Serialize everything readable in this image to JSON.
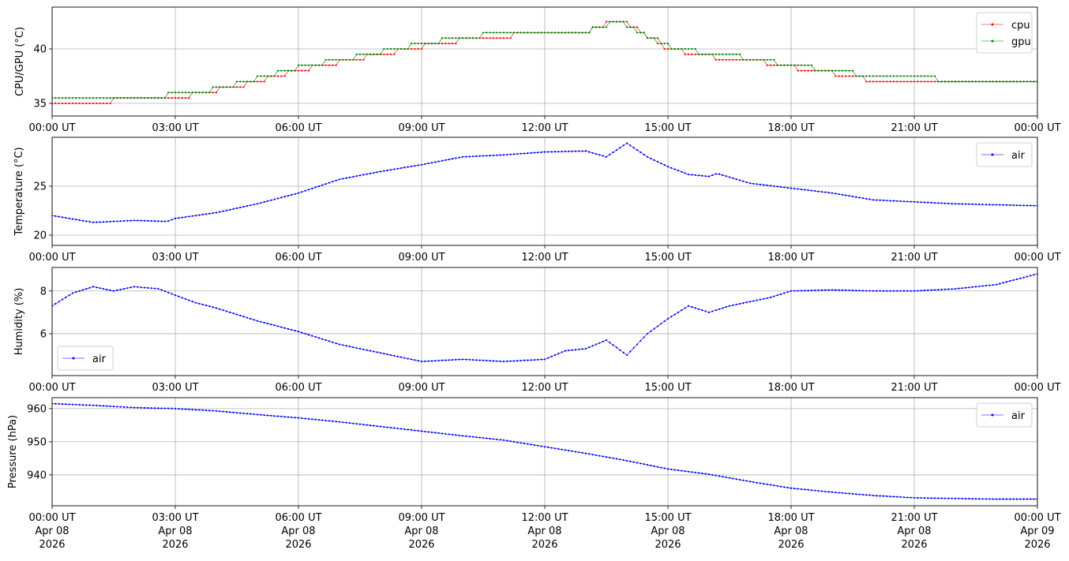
{
  "chart_data": [
    {
      "type": "line",
      "ylabel": "CPU/GPU (°C)",
      "ylim": [
        33.84,
        43.84
      ],
      "yticks": [
        35,
        40
      ],
      "legend": "top-right",
      "grid": true,
      "series": [
        {
          "name": "cpu",
          "color": "#ff0000",
          "quantize": 0.5,
          "x": [
            0,
            1,
            2,
            3,
            4,
            5,
            6,
            7,
            8,
            9,
            10,
            11,
            12,
            13,
            13.8,
            14.2,
            15,
            16,
            17,
            18,
            19,
            20,
            21,
            22,
            23,
            24
          ],
          "y": [
            35.2,
            35.2,
            35.3,
            35.5,
            36.2,
            37.0,
            38.0,
            38.8,
            39.5,
            40.2,
            40.8,
            41.2,
            41.4,
            41.5,
            42.8,
            42.0,
            40.0,
            39.3,
            39.0,
            38.3,
            37.8,
            37.1,
            37.0,
            36.8,
            36.8,
            36.8
          ]
        },
        {
          "name": "gpu",
          "color": "#008000",
          "quantize": 0.5,
          "x": [
            0,
            1,
            2,
            3,
            4,
            5,
            6,
            7,
            8,
            9,
            10,
            11,
            12,
            13,
            13.8,
            14.2,
            15,
            16,
            17,
            18,
            19,
            20,
            21,
            22,
            23,
            24
          ],
          "y": [
            35.5,
            35.5,
            35.5,
            35.8,
            36.3,
            37.3,
            38.3,
            39.0,
            39.7,
            40.5,
            41.0,
            41.5,
            41.6,
            41.6,
            42.5,
            41.8,
            40.3,
            39.5,
            39.2,
            38.5,
            38.0,
            37.5,
            37.3,
            37.2,
            37.2,
            37.2
          ]
        }
      ]
    },
    {
      "type": "line",
      "ylabel": "Temperature (°C)",
      "ylim": [
        18.95,
        30.0
      ],
      "yticks": [
        20,
        25
      ],
      "legend": "top-right",
      "grid": true,
      "series": [
        {
          "name": "air",
          "color": "#0000ff",
          "x": [
            0,
            1,
            2,
            2.8,
            3,
            4,
            5,
            6,
            7,
            8,
            9,
            10,
            11,
            12,
            13,
            13.5,
            14,
            14.5,
            15,
            15.5,
            16,
            16.2,
            17,
            18,
            19,
            20,
            21,
            22,
            23,
            24
          ],
          "y": [
            22.0,
            21.3,
            21.5,
            21.4,
            21.7,
            22.3,
            23.2,
            24.3,
            25.7,
            26.5,
            27.2,
            28.0,
            28.2,
            28.5,
            28.6,
            28.0,
            29.4,
            28.0,
            27.0,
            26.2,
            26.0,
            26.3,
            25.3,
            24.8,
            24.3,
            23.6,
            23.4,
            23.2,
            23.1,
            23.0
          ]
        }
      ]
    },
    {
      "type": "line",
      "ylabel": "Humidity (%)",
      "ylim": [
        4.04,
        9.1
      ],
      "yticks": [
        6,
        8
      ],
      "legend": "bottom-left",
      "grid": true,
      "series": [
        {
          "name": "air",
          "color": "#0000ff",
          "x": [
            0,
            0.5,
            1,
            1.5,
            2,
            2.6,
            3,
            3.5,
            4,
            5,
            6,
            7,
            8,
            8.5,
            9,
            10,
            11,
            12,
            12.5,
            13,
            13.5,
            14,
            14.5,
            15,
            15.5,
            16,
            16.5,
            17,
            17.5,
            18,
            19,
            20,
            21,
            22,
            23,
            24
          ],
          "y": [
            7.3,
            7.9,
            8.2,
            8.0,
            8.2,
            8.1,
            7.8,
            7.45,
            7.2,
            6.6,
            6.1,
            5.5,
            5.1,
            4.9,
            4.7,
            4.8,
            4.7,
            4.8,
            5.2,
            5.3,
            5.7,
            5.0,
            6.0,
            6.7,
            7.3,
            7.0,
            7.3,
            7.5,
            7.7,
            8.0,
            8.05,
            8.0,
            8.0,
            8.1,
            8.3,
            8.8
          ]
        }
      ]
    },
    {
      "type": "line",
      "ylabel": "Pressure (hPa)",
      "ylim": [
        930.7,
        963.3
      ],
      "yticks": [
        940,
        950,
        960
      ],
      "legend": "top-right",
      "grid": true,
      "series": [
        {
          "name": "air",
          "color": "#0000ff",
          "x": [
            0,
            1,
            2,
            3,
            4,
            5,
            6,
            7,
            8,
            9,
            10,
            11,
            12,
            13,
            14,
            15,
            16,
            17,
            18,
            19,
            20,
            21,
            22,
            23,
            24
          ],
          "y": [
            961.5,
            961.0,
            960.3,
            960.0,
            959.3,
            958.2,
            957.2,
            956.0,
            954.6,
            953.2,
            951.8,
            950.5,
            948.5,
            946.5,
            944.3,
            941.8,
            940.2,
            938.0,
            936.0,
            934.8,
            933.8,
            933.1,
            932.9,
            932.7,
            932.7
          ]
        }
      ]
    }
  ],
  "xaxis": {
    "xlim_hours": [
      0,
      24
    ],
    "tick_times": [
      "00:00 UT",
      "03:00 UT",
      "06:00 UT",
      "09:00 UT",
      "12:00 UT",
      "15:00 UT",
      "18:00 UT",
      "21:00 UT",
      "00:00 UT"
    ],
    "tick_dates": [
      "Apr 08",
      "Apr 08",
      "Apr 08",
      "Apr 08",
      "Apr 08",
      "Apr 08",
      "Apr 08",
      "Apr 08",
      "Apr 09"
    ],
    "tick_years": [
      "2026",
      "2026",
      "2026",
      "2026",
      "2026",
      "2026",
      "2026",
      "2026",
      "2026"
    ]
  }
}
